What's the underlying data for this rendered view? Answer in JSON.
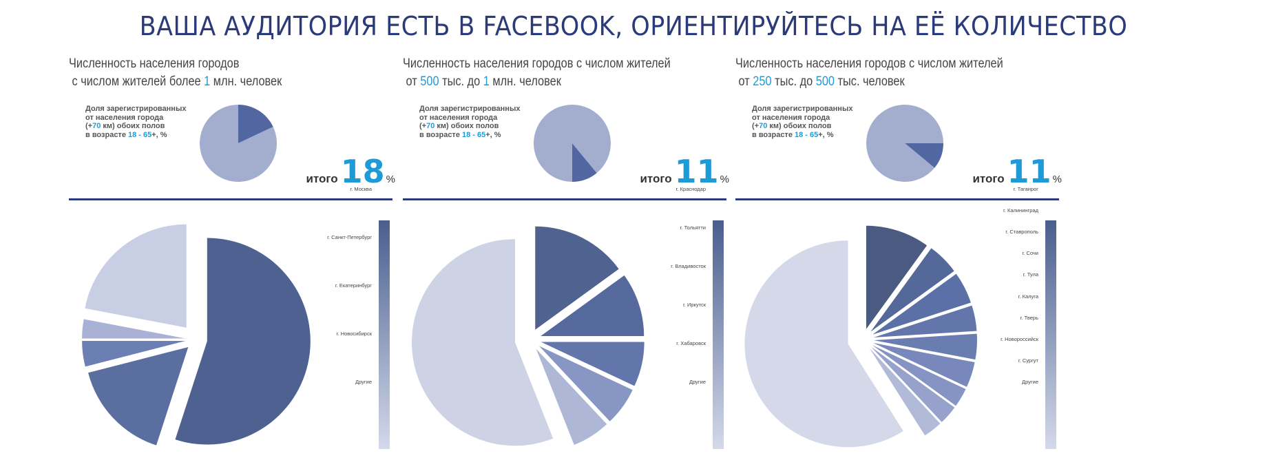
{
  "header": {
    "title": "ВАША АУДИТОРИЯ ЕСТЬ В FACEBOOK, ОРИЕНТИРУЙТЕСЬ НА ЕЁ КОЛИЧЕСТВО"
  },
  "share_label": {
    "line1": "Доля зарегистрированных",
    "line2": "от населения города",
    "line3_pre": "(+",
    "line3_num": "70",
    "line3_post": " км) обоих полов",
    "line4_pre": "в возрасте ",
    "line4_num": "18 - 65",
    "line4_post": "+, %"
  },
  "total_word": "итого",
  "percent_sign": "%",
  "colors": {
    "accent": "#1e9bd7",
    "title": "#2b3a78",
    "small_pie_slice": "#5266a1",
    "small_pie_rest": "#a3aece"
  },
  "panels": [
    {
      "title_line1": "Численность населения городов",
      "title_line2_pre": " с числом жителей более ",
      "title_line2_num1": "1",
      "title_line2_mid": " млн. человек",
      "title_line2_num2": "",
      "title_line2_post": "",
      "total_value": "18"
    },
    {
      "title_line1": "Численность населения городов с числом жителей",
      "title_line2_pre": " от ",
      "title_line2_num1": "500",
      "title_line2_mid": " тыс. до ",
      "title_line2_num2": "1",
      "title_line2_post": " млн. человек",
      "total_value": "11"
    },
    {
      "title_line1": "Численность населения городов с числом жителей",
      "title_line2_pre": " от ",
      "title_line2_num1": "250",
      "title_line2_mid": " тыс. до ",
      "title_line2_num2": "500",
      "title_line2_post": " тыс. человек",
      "total_value": "11"
    }
  ],
  "chart_data": [
    {
      "type": "pie",
      "title": "",
      "values": [
        18,
        82
      ],
      "colors": [
        "#5266a1",
        "#a3aece"
      ]
    },
    {
      "type": "pie",
      "title": "",
      "values": [
        11,
        89
      ],
      "colors": [
        "#5266a1",
        "#a3aece"
      ]
    },
    {
      "type": "pie",
      "title": "",
      "values": [
        11,
        89
      ],
      "colors": [
        "#5266a1",
        "#a3aece"
      ]
    },
    {
      "type": "pie",
      "title": "",
      "categories": [
        "г. Москва",
        "г. Санкт-Петербург",
        "г. Екатеринбург",
        "г. Новосибирск",
        "Другие"
      ],
      "values": [
        55,
        16,
        4,
        3,
        22
      ],
      "colors": [
        "#4e6190",
        "#5a6fa0",
        "#6b7fb5",
        "#a9b2d4",
        "#c8cee3"
      ]
    },
    {
      "type": "pie",
      "title": "",
      "categories": [
        "г. Краснодар",
        "г. Тольятти",
        "г. Владивосток",
        "г. Иркутск",
        "г. Хабаровск",
        "Другие"
      ],
      "values": [
        15,
        10,
        7,
        6,
        6,
        56
      ],
      "colors": [
        "#4f6290",
        "#55699c",
        "#6276ab",
        "#8796c3",
        "#afb7d7",
        "#cdd3e5"
      ]
    },
    {
      "type": "pie",
      "title": "",
      "categories": [
        "г. Таганрог",
        "г. Калининград",
        "г. Ставрополь",
        "г. Сочи",
        "г. Тула",
        "г. Калуга",
        "г. Тверь",
        "г. Новороссийск",
        "г. Сургут",
        "Другие"
      ],
      "values": [
        10,
        5,
        5,
        4,
        4,
        4,
        3,
        3,
        3,
        59
      ],
      "colors": [
        "#4b5a80",
        "#55689a",
        "#5b70a6",
        "#6276ab",
        "#6a7db1",
        "#7888bc",
        "#8594c3",
        "#96a2cb",
        "#b2bada",
        "#d4d8e8"
      ]
    }
  ]
}
